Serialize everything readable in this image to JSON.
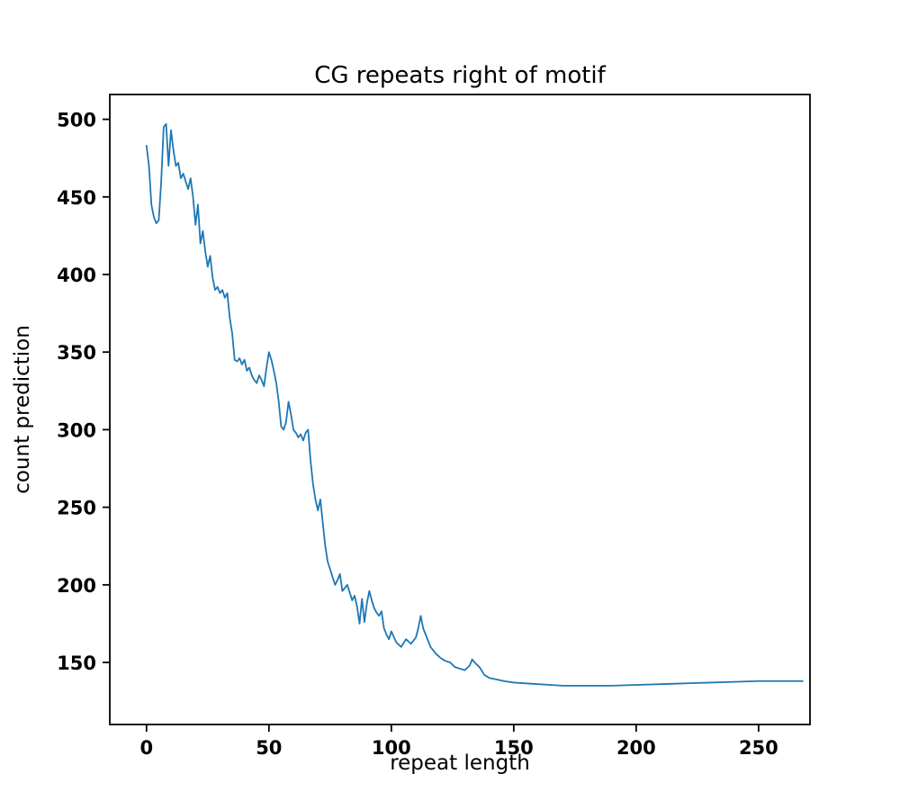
{
  "chart_data": {
    "type": "line",
    "title": "CG repeats right of motif",
    "xlabel": "repeat length",
    "ylabel": "count prediction",
    "xlim": [
      -15,
      271
    ],
    "ylim": [
      110,
      516
    ],
    "xticks": [
      0,
      50,
      100,
      150,
      200,
      250
    ],
    "yticks": [
      150,
      200,
      250,
      300,
      350,
      400,
      450,
      500
    ],
    "grid": false,
    "legend": "none",
    "line_color": "#1f77b4",
    "series": [
      {
        "name": "count prediction",
        "x": [
          0,
          1,
          2,
          3,
          4,
          5,
          6,
          7,
          8,
          9,
          10,
          11,
          12,
          13,
          14,
          15,
          16,
          17,
          18,
          19,
          20,
          21,
          22,
          23,
          24,
          25,
          26,
          27,
          28,
          29,
          30,
          31,
          32,
          33,
          34,
          35,
          36,
          37,
          38,
          39,
          40,
          41,
          42,
          43,
          44,
          45,
          46,
          47,
          48,
          49,
          50,
          51,
          52,
          53,
          54,
          55,
          56,
          57,
          58,
          59,
          60,
          61,
          62,
          63,
          64,
          65,
          66,
          67,
          68,
          69,
          70,
          71,
          72,
          73,
          74,
          75,
          76,
          77,
          78,
          79,
          80,
          82,
          84,
          85,
          86,
          87,
          88,
          89,
          90,
          91,
          92,
          93,
          94,
          95,
          96,
          97,
          98,
          99,
          100,
          102,
          104,
          106,
          108,
          110,
          111,
          112,
          113,
          114,
          116,
          118,
          120,
          122,
          124,
          126,
          128,
          130,
          132,
          133,
          134,
          136,
          138,
          140,
          143,
          146,
          150,
          155,
          160,
          165,
          170,
          175,
          180,
          190,
          200,
          210,
          220,
          230,
          240,
          250,
          260,
          268
        ],
        "y": [
          483,
          470,
          445,
          437,
          433,
          435,
          460,
          495,
          497,
          470,
          493,
          480,
          470,
          472,
          462,
          465,
          460,
          455,
          462,
          450,
          432,
          445,
          420,
          428,
          415,
          405,
          412,
          398,
          390,
          392,
          388,
          390,
          385,
          388,
          372,
          362,
          345,
          344,
          346,
          342,
          345,
          338,
          340,
          335,
          332,
          330,
          335,
          332,
          328,
          340,
          350,
          345,
          338,
          330,
          318,
          302,
          300,
          305,
          318,
          310,
          300,
          298,
          295,
          297,
          293,
          298,
          300,
          280,
          265,
          255,
          248,
          255,
          240,
          225,
          215,
          210,
          205,
          200,
          203,
          207,
          196,
          200,
          190,
          193,
          186,
          175,
          191,
          176,
          188,
          196,
          190,
          185,
          182,
          180,
          183,
          172,
          168,
          165,
          170,
          163,
          160,
          165,
          162,
          166,
          172,
          180,
          172,
          168,
          160,
          156,
          153,
          151,
          150,
          147,
          146,
          145,
          148,
          152,
          150,
          147,
          142,
          140,
          139,
          138,
          137,
          136.5,
          136,
          135.5,
          135,
          135,
          135,
          135,
          135.5,
          136,
          136.5,
          137,
          137.5,
          138,
          138,
          138
        ]
      }
    ]
  }
}
